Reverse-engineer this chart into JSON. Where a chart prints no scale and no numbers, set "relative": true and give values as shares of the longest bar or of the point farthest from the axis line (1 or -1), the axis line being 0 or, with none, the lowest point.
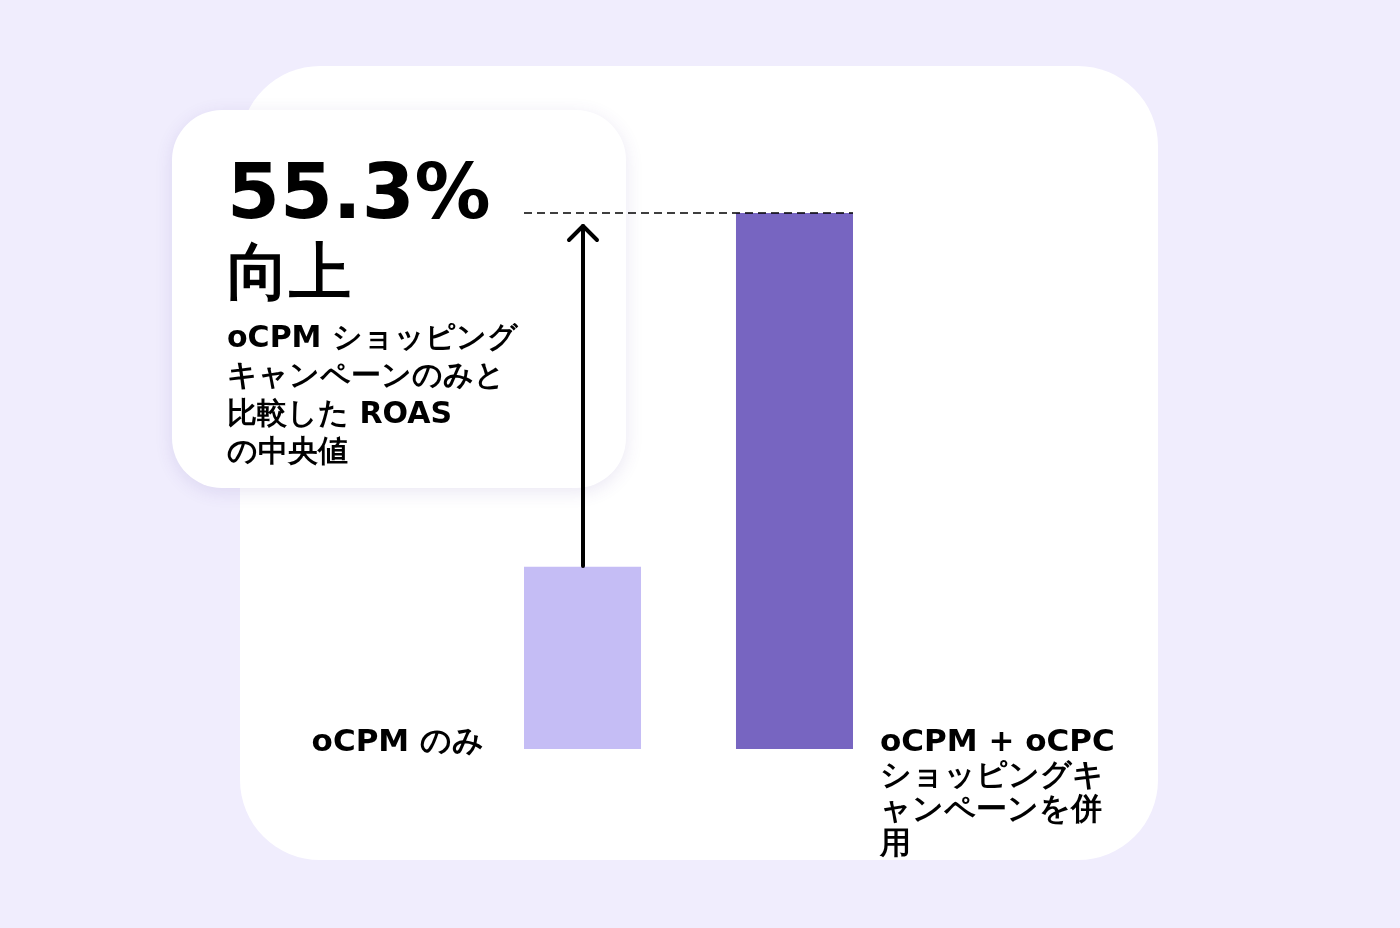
{
  "chart_data": {
    "type": "bar",
    "relative": true,
    "categories": [
      "oCPM のみ",
      "oCPM + oCPC ショッピングキャンペーンを併用"
    ],
    "values": [
      0.34,
      1
    ],
    "colors": [
      "#c5bdf5",
      "#7765c1"
    ],
    "ref_lines": [
      {
        "axis": "y",
        "value": 1,
        "line_style": "dashed",
        "color": "#000000"
      }
    ],
    "annotations": [
      "55.3%",
      "向上",
      "oCPM ショッピングキャンペーンのみと比較した ROAS の中央値"
    ]
  }
}
